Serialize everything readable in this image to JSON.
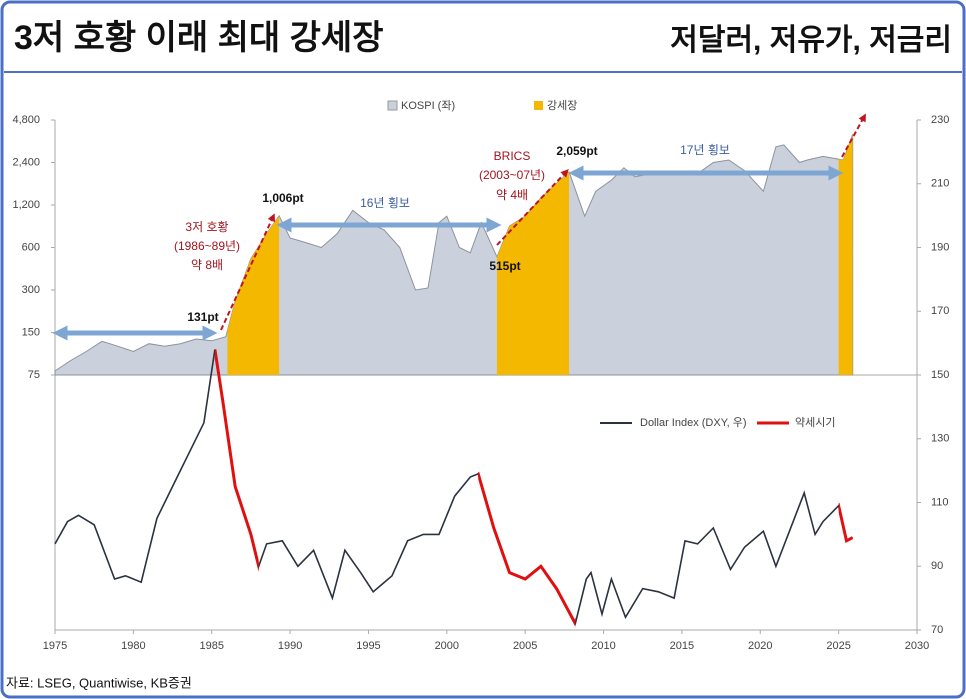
{
  "header": {
    "title": "3저 호황 이래 최대 강세장",
    "subtitle": "저달러, 저유가, 저금리"
  },
  "chart_data": {
    "type": "area",
    "xlim": [
      1975,
      2030
    ],
    "xticks": [
      1975,
      1980,
      1985,
      1990,
      1995,
      2000,
      2005,
      2010,
      2015,
      2020,
      2025,
      2030
    ],
    "ylim": [
      75,
      4800
    ],
    "log_y": true,
    "yticks": [
      {
        "value": 4800,
        "label": "4,800"
      },
      {
        "value": 2400,
        "label": "2,400"
      },
      {
        "value": 1200,
        "label": "1,200"
      },
      600,
      300,
      150,
      75
    ],
    "y2lim": [
      70,
      230
    ],
    "y2ticks": [
      230,
      210,
      190,
      170,
      150,
      130,
      110,
      90,
      70
    ],
    "series": [
      {
        "name": "KOSPI (좌)",
        "color": "#cbd1dc",
        "x": [
          1975,
          1976,
          1977,
          1978,
          1979,
          1980,
          1981,
          1982,
          1983,
          1984,
          1985,
          1985.9,
          1986.5,
          1987.5,
          1988.5,
          1989.3,
          1990,
          1991,
          1992,
          1993,
          1994,
          1995,
          1996,
          1997,
          1998,
          1998.8,
          1999.5,
          2000,
          2000.8,
          2001.5,
          2002.2,
          2003.2,
          2004,
          2005,
          2006,
          2007.8,
          2008.8,
          2009.5,
          2010.5,
          2011.3,
          2012,
          2013,
          2014,
          2015,
          2016,
          2017,
          2018,
          2019,
          2020.2,
          2021,
          2021.5,
          2022.5,
          2023,
          2024,
          2025.3,
          2025.9
        ],
        "values": [
          80,
          95,
          110,
          130,
          120,
          110,
          125,
          120,
          125,
          135,
          131,
          140,
          250,
          500,
          750,
          1006,
          700,
          650,
          600,
          750,
          1100,
          900,
          800,
          600,
          300,
          310,
          900,
          1000,
          600,
          550,
          900,
          515,
          850,
          1000,
          1350,
          2059,
          1000,
          1500,
          1800,
          2200,
          1900,
          2000,
          2000,
          2000,
          2000,
          2400,
          2500,
          2100,
          1500,
          3100,
          3200,
          2400,
          2500,
          2650,
          2500,
          3800
        ]
      },
      {
        "name": "Dollar Index (DXY, 우)",
        "color": "#2b3240",
        "axis": "y2",
        "x": [
          1975,
          1975.8,
          1976.5,
          1977.5,
          1978.8,
          1979.5,
          1980.5,
          1981.5,
          1982.8,
          1983.5,
          1984.5,
          1985.2,
          1985.7,
          1986.5,
          1987.5,
          1988,
          1988.5,
          1989.5,
          1990.5,
          1991.5,
          1992.7,
          1993.5,
          1994.5,
          1995.3,
          1996.5,
          1997.5,
          1998.5,
          1999.5,
          2000.5,
          2001.5,
          2002,
          2003,
          2004,
          2005,
          2006,
          2007,
          2008.2,
          2008.9,
          2009.2,
          2009.9,
          2010.5,
          2011.4,
          2012.5,
          2013.5,
          2014.5,
          2015.2,
          2016,
          2017,
          2018.1,
          2019,
          2020.2,
          2021,
          2022.8,
          2023.5,
          2024,
          2025,
          2025.5,
          2025.9
        ],
        "values": [
          97,
          104,
          106,
          103,
          86,
          87,
          85,
          105,
          118,
          125,
          135,
          158,
          142,
          115,
          100,
          90,
          97,
          98,
          90,
          95,
          80,
          95,
          88,
          82,
          87,
          98,
          100,
          100,
          112,
          118,
          119,
          102,
          88,
          86,
          90,
          83,
          72,
          86,
          88,
          75,
          86,
          74,
          83,
          82,
          80,
          98,
          97,
          102,
          89,
          96,
          101,
          90,
          113,
          100,
          104,
          109,
          98,
          99
        ]
      }
    ],
    "shading": {
      "name": "강세장",
      "color": "#f5b800",
      "ranges": [
        [
          1986,
          1989.3
        ],
        [
          2003.2,
          2007.8
        ],
        [
          2025,
          2025.9
        ]
      ]
    },
    "highlight": {
      "name": "약세시기",
      "color": "#e01010",
      "ranges": [
        [
          1985.2,
          1988
        ],
        [
          2002,
          2008.2
        ],
        [
          2025,
          2025.9
        ]
      ]
    },
    "annotations": [
      "3저 호황",
      "(1986~89년)",
      "약 8배",
      "16년 횡보",
      "BRICS",
      "(2003~07년)",
      "약 4배",
      "17년 횡보",
      "131pt",
      "1,006pt",
      "515pt",
      "2,059pt"
    ]
  },
  "source": "자료: LSEG, Quantiwise, KB증권"
}
